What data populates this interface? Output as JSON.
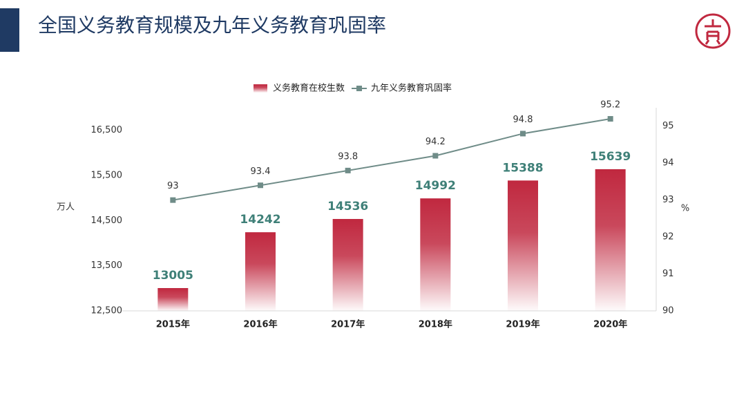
{
  "chart_data": {
    "type": "bar",
    "title": "全国义务教育规模及九年义务教育巩固率",
    "y_label": "万人",
    "y2_label": "%",
    "categories": [
      "2015年",
      "2016年",
      "2017年",
      "2018年",
      "2019年",
      "2020年"
    ],
    "series": [
      {
        "name": "义务教育在校生数",
        "type": "bar",
        "color": "#c0283f",
        "values": [
          13005,
          14242,
          14536,
          14992,
          15388,
          15639
        ]
      },
      {
        "name": "九年义务教育巩固率",
        "type": "line",
        "axis": "y2",
        "color": "#6f8c88",
        "values": [
          93,
          93.4,
          93.8,
          94.2,
          94.8,
          95.2
        ]
      }
    ],
    "ylim": [
      12500,
      17000
    ],
    "yticks": [
      {
        "value": 12500,
        "label": "12,500"
      },
      {
        "value": 13500,
        "label": "13,500"
      },
      {
        "value": 14500,
        "label": "14,500"
      },
      {
        "value": 15500,
        "label": "15,500"
      },
      {
        "value": 16500,
        "label": "16,500"
      }
    ],
    "y2lim": [
      90,
      95.5
    ],
    "y2ticks": [
      90,
      91,
      92,
      93,
      94,
      95
    ],
    "grid": false,
    "legend": "top"
  }
}
